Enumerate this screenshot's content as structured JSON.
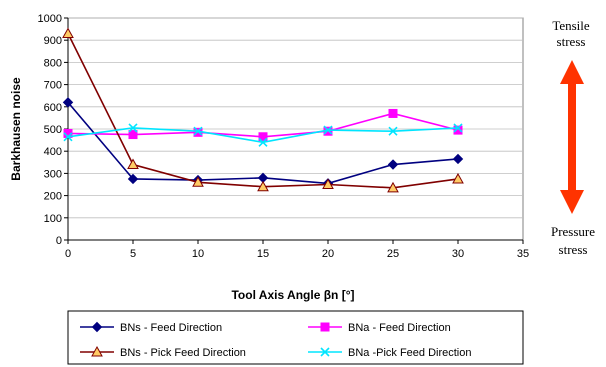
{
  "chart_data": {
    "type": "line",
    "xlabel": "Tool Axis Angle βn [°]",
    "ylabel": "Barkhausen noise",
    "xlim": [
      0,
      35
    ],
    "ylim": [
      0,
      1000
    ],
    "x_ticks": [
      "0",
      "5",
      "10",
      "15",
      "20",
      "25",
      "30",
      "35"
    ],
    "y_ticks": [
      "0",
      "100",
      "200",
      "300",
      "400",
      "500",
      "600",
      "700",
      "800",
      "900",
      "1000"
    ],
    "grid": true,
    "legend_position": "bottom",
    "x": [
      0,
      5,
      10,
      15,
      20,
      25,
      30
    ],
    "series": [
      {
        "name": "BNs - Feed Direction",
        "values": [
          620,
          275,
          270,
          280,
          255,
          340,
          365
        ],
        "color": "#000080",
        "marker": "diamond"
      },
      {
        "name": "BNa - Feed Direction",
        "values": [
          480,
          475,
          485,
          465,
          490,
          570,
          495
        ],
        "color": "#ff00ff",
        "marker": "square"
      },
      {
        "name": "BNs - Pick Feed Direction",
        "values": [
          930,
          340,
          260,
          240,
          250,
          235,
          275
        ],
        "color": "#800000",
        "marker": "triangle",
        "marker_fill": "#ffcc66"
      },
      {
        "name": "BNa -Pick Feed Direction",
        "values": [
          465,
          505,
          490,
          440,
          495,
          490,
          505
        ],
        "color": "#00e5ff",
        "marker": "x"
      }
    ]
  },
  "annotations": {
    "tensile_line1": "Tensile",
    "tensile_line2": "stress",
    "pressure_line1": "Pressure",
    "pressure_line2": "stress",
    "arrow_color": "#ff3300"
  }
}
